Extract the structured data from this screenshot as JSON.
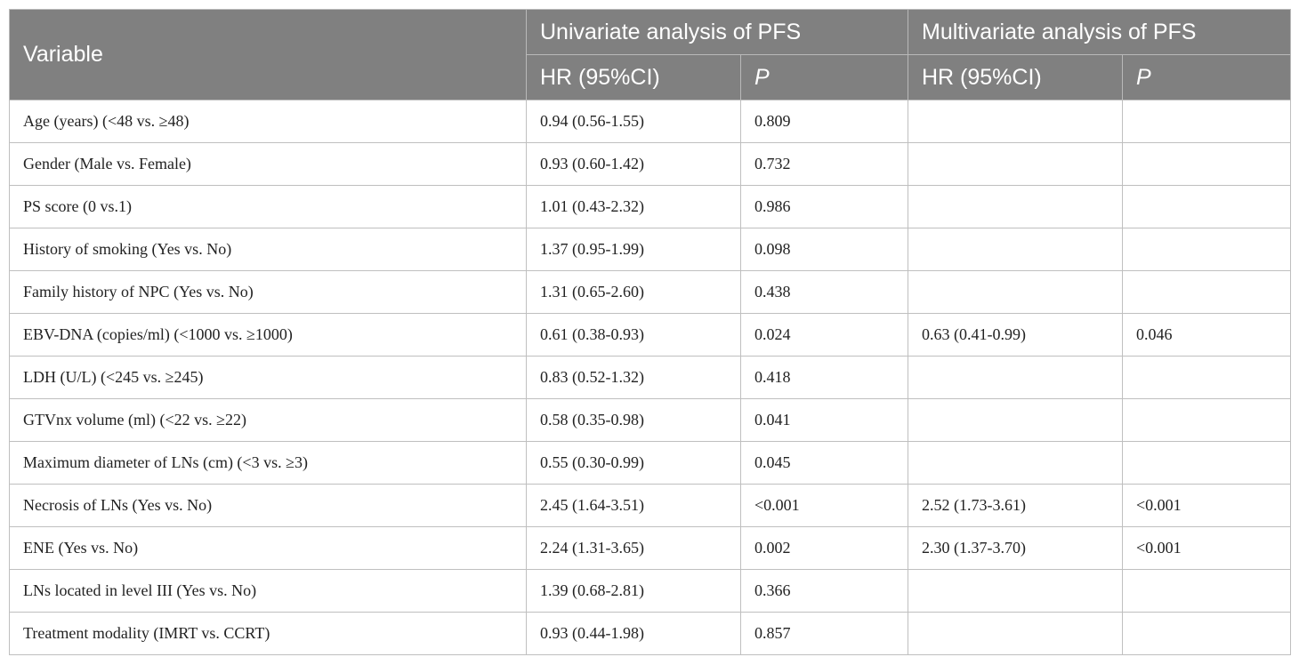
{
  "header": {
    "variable": "Variable",
    "univariate": "Univariate analysis of PFS",
    "multivariate": "Multivariate analysis of PFS",
    "hr_label": "HR (95%CI)",
    "p_label": "P"
  },
  "rows": [
    {
      "variable": "Age (years) (<48 vs. ≥48)",
      "uni_hr": "0.94 (0.56-1.55)",
      "uni_p": "0.809",
      "multi_hr": "",
      "multi_p": ""
    },
    {
      "variable": "Gender (Male vs. Female)",
      "uni_hr": "0.93 (0.60-1.42)",
      "uni_p": "0.732",
      "multi_hr": "",
      "multi_p": ""
    },
    {
      "variable": "PS score (0 vs.1)",
      "uni_hr": "1.01 (0.43-2.32)",
      "uni_p": "0.986",
      "multi_hr": "",
      "multi_p": ""
    },
    {
      "variable": "History of smoking (Yes vs. No)",
      "uni_hr": "1.37 (0.95-1.99)",
      "uni_p": "0.098",
      "multi_hr": "",
      "multi_p": ""
    },
    {
      "variable": "Family history of NPC (Yes vs. No)",
      "uni_hr": "1.31 (0.65-2.60)",
      "uni_p": "0.438",
      "multi_hr": "",
      "multi_p": ""
    },
    {
      "variable": "EBV-DNA (copies/ml) (<1000 vs. ≥1000)",
      "uni_hr": "0.61 (0.38-0.93)",
      "uni_p": "0.024",
      "multi_hr": "0.63 (0.41-0.99)",
      "multi_p": "0.046"
    },
    {
      "variable": "LDH (U/L) (<245 vs. ≥245)",
      "uni_hr": "0.83 (0.52-1.32)",
      "uni_p": "0.418",
      "multi_hr": "",
      "multi_p": ""
    },
    {
      "variable": "GTVnx volume (ml) (<22 vs. ≥22)",
      "uni_hr": "0.58 (0.35-0.98)",
      "uni_p": "0.041",
      "multi_hr": "",
      "multi_p": ""
    },
    {
      "variable": "Maximum diameter of LNs (cm) (<3 vs. ≥3)",
      "uni_hr": "0.55 (0.30-0.99)",
      "uni_p": "0.045",
      "multi_hr": "",
      "multi_p": ""
    },
    {
      "variable": "Necrosis of LNs (Yes vs. No)",
      "uni_hr": "2.45 (1.64-3.51)",
      "uni_p": "<0.001",
      "multi_hr": "2.52 (1.73-3.61)",
      "multi_p": "<0.001"
    },
    {
      "variable": "ENE (Yes vs. No)",
      "uni_hr": "2.24 (1.31-3.65)",
      "uni_p": "0.002",
      "multi_hr": "2.30 (1.37-3.70)",
      "multi_p": "<0.001"
    },
    {
      "variable": "LNs located in level III (Yes vs. No)",
      "uni_hr": "1.39 (0.68-2.81)",
      "uni_p": "0.366",
      "multi_hr": "",
      "multi_p": ""
    },
    {
      "variable": "Treatment modality (IMRT vs. CCRT)",
      "uni_hr": "0.93 (0.44-1.98)",
      "uni_p": "0.857",
      "multi_hr": "",
      "multi_p": ""
    }
  ]
}
